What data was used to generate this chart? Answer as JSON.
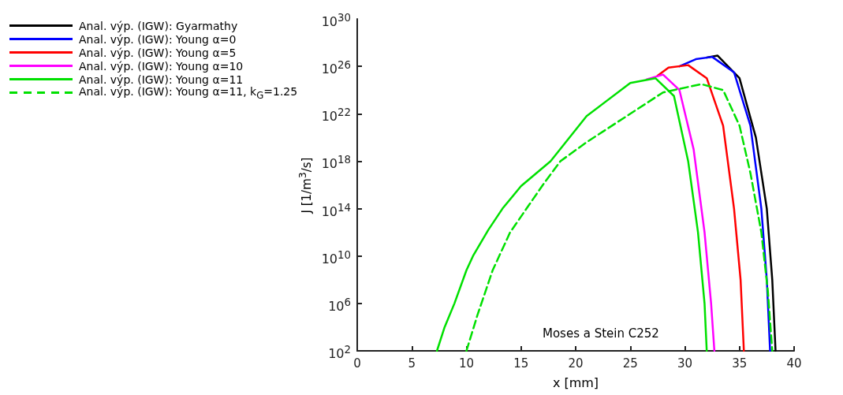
{
  "chart_data": {
    "type": "line",
    "xlabel": "x [mm]",
    "ylabel": "J [1/m$^{3}$/s]",
    "log": "y",
    "grid": false,
    "legend": "top left",
    "marker": "none",
    "xlim": [
      0,
      40
    ],
    "xticks": [
      0,
      5,
      10,
      15,
      20,
      25,
      30,
      35,
      40
    ],
    "ylim": [
      100.0,
      1e+30
    ],
    "yticks": [
      {
        "value": 100.0,
        "label": "10$^{2}$"
      },
      {
        "value": 1000000.0,
        "label": "10$^{6}$"
      },
      {
        "value": 10000000000.0,
        "label": "10$^{10}$"
      },
      {
        "value": 100000000000000.0,
        "label": "10$^{14}$"
      },
      {
        "value": 1e+18,
        "label": "10$^{18}$"
      },
      {
        "value": 1e+22,
        "label": "10$^{22}$"
      },
      {
        "value": 1e+26,
        "label": "10$^{26}$"
      },
      {
        "value": 1e+30,
        "label": "10$^{30}$"
      }
    ],
    "annotations": [
      "Moses a Stein C252"
    ],
    "series": [
      {
        "name": "Anal. výp. (IGW): Gyarmathy",
        "color": "#000000",
        "line_style": "solid",
        "x": [
          32,
          33,
          35,
          36.5,
          37.5,
          38,
          38.3
        ],
        "values": [
          5.5e+26,
          8e+26,
          1e+25,
          1e+20,
          100000000000000.0,
          100000000.0,
          100.0
        ]
      },
      {
        "name": "Anal. výp. (IGW): Young α=0",
        "color": "#0000ff",
        "line_style": "solid",
        "x": [
          29.5,
          31,
          32.5,
          34.5,
          36,
          37,
          37.5,
          37.8
        ],
        "values": [
          1e+26,
          4e+26,
          6.3e+26,
          3.16e+25,
          1e+21,
          100000000000000.0,
          100000000.0,
          100.0
        ]
      },
      {
        "name": "Anal. výp. (IGW): Young α=5",
        "color": "#ff0000",
        "line_style": "solid",
        "x": [
          27.5,
          28.5,
          30.3,
          32,
          33.5,
          34.5,
          35.1,
          35.4
        ],
        "values": [
          1.6e+25,
          7.9e+25,
          1.26e+26,
          1e+25,
          1e+21,
          100000000000000.0,
          100000000.0,
          100.0
        ]
      },
      {
        "name": "Anal. výp. (IGW): Young α=10",
        "color": "#ff00ff",
        "line_style": "solid",
        "x": [
          26.5,
          28,
          29.5,
          30.8,
          31.8,
          32.4,
          32.7
        ],
        "values": [
          8e+24,
          2e+25,
          1e+24,
          1e+19,
          1000000000000.0,
          1000000.0,
          100.0
        ]
      },
      {
        "name": "Anal. výp. (IGW): Young α=11",
        "color": "#00e000",
        "line_style": "solid",
        "x": [
          7.3,
          8,
          8.9,
          10,
          10.6,
          12,
          13.3,
          15,
          17.7,
          21,
          25,
          27.3,
          29,
          30.3,
          31.2,
          31.8,
          32
        ],
        "values": [
          100.0,
          10000.0,
          1000000.0,
          630000000.0,
          10000000000.0,
          1580000000000.0,
          100000000000000.0,
          7900000000000000.0,
          1e+18,
          6.3e+21,
          4e+24,
          1e+25,
          3.16e+23,
          1e+18,
          1000000000000.0,
          1000000.0,
          100.0
        ]
      },
      {
        "name": "Anal. výp. (IGW): Young α=11, k$_{G}$=1.25",
        "color": "#00e000",
        "line_style": "dashed",
        "x": [
          10,
          11,
          12.4,
          14,
          15.5,
          17,
          18.6,
          21,
          25,
          28,
          31.5,
          33.5,
          35,
          36,
          37,
          37.6,
          38
        ],
        "values": [
          100.0,
          100000.0,
          630000000.0,
          1000000000000.0,
          100000000000000.0,
          1e+16,
          1e+18,
          3.98e+19,
          1e+22,
          6.3e+23,
          3.16e+24,
          1e+24,
          1e+21,
          1e+17,
          1000000000000.0,
          10000000.0,
          100.0
        ]
      }
    ]
  }
}
